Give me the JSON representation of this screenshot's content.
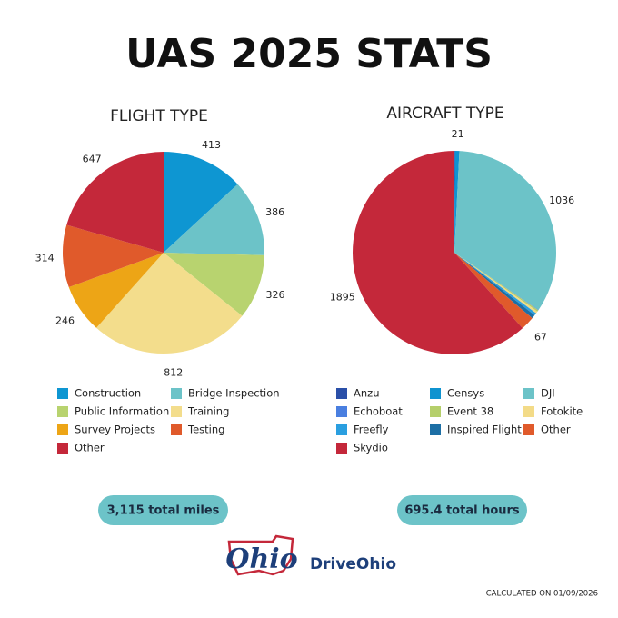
{
  "title": "UAS 2025 STATS",
  "chart_data": [
    {
      "type": "pie",
      "title": "FLIGHT TYPE",
      "categories": [
        "Construction",
        "Bridge Inspection",
        "Public Information",
        "Training",
        "Survey Projects",
        "Testing",
        "Other"
      ],
      "values": [
        413,
        386,
        326,
        812,
        246,
        314,
        647
      ],
      "colors": [
        "#0e96d2",
        "#6cc3c8",
        "#b8d36f",
        "#f3dd8c",
        "#eda516",
        "#e05a2b",
        "#c4283a"
      ],
      "legend_columns": 2
    },
    {
      "type": "pie",
      "title": "AIRCRAFT TYPE",
      "categories": [
        "Anzu",
        "Censys",
        "DJI",
        "Echoboat",
        "Event 38",
        "Fotokite",
        "Freefly",
        "Inspired Flight",
        "Other",
        "Skydio"
      ],
      "values": [
        3,
        21,
        1036,
        2,
        8,
        10,
        12,
        18,
        67,
        1895
      ],
      "colors": [
        "#2a4fa8",
        "#0f93d0",
        "#6cc3c8",
        "#4a7fe0",
        "#b5cf6b",
        "#f3db88",
        "#2a9fe0",
        "#1d6fa5",
        "#e05a2b",
        "#c4283a"
      ],
      "legend_columns": 3
    }
  ],
  "totals": [
    "3,115 total miles",
    "695.4 total hours"
  ],
  "logo": {
    "mark": "Ohio",
    "name": "DriveOhio"
  },
  "footnote": "CALCULATED ON 01/09/2026"
}
